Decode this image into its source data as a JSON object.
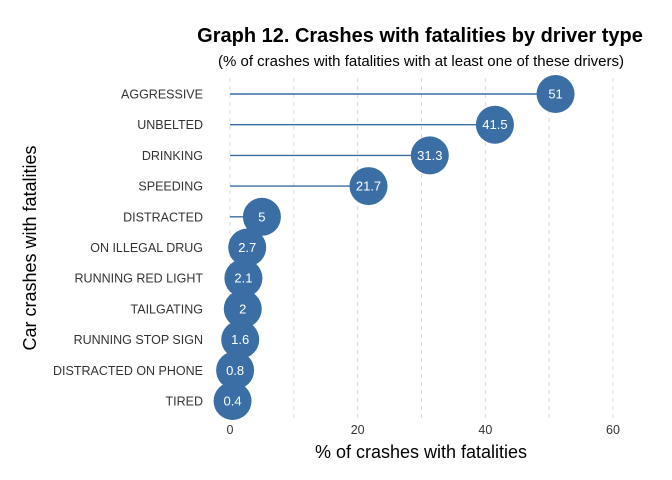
{
  "chart_data": {
    "type": "lollipop",
    "title": "Graph 12. Crashes with fatalities by driver type",
    "subtitle": "(% of crashes with fatalities with at least one of these drivers)",
    "xlabel": "% of crashes with fatalities",
    "ylabel": "Car crashes with fatalities",
    "categories": [
      "AGGRESSIVE",
      "UNBELTED",
      "DRINKING",
      "SPEEDING",
      "DISTRACTED",
      "ON ILLEGAL DRUG",
      "RUNNING RED LIGHT",
      "TAILGATING",
      "RUNNING STOP SIGN",
      "DISTRACTED ON PHONE",
      "TIRED"
    ],
    "values": [
      51,
      41.5,
      31.3,
      21.7,
      5,
      2.7,
      2.1,
      2,
      1.6,
      0.8,
      0.4
    ],
    "value_labels": [
      "51",
      "41.5",
      "31.3",
      "21.7",
      "5",
      "2.7",
      "2.1",
      "2",
      "1.6",
      "0.8",
      "0.4"
    ],
    "x_ticks": [
      0,
      20,
      40,
      60
    ],
    "x_tick_labels": [
      "0",
      "20",
      "40",
      "60"
    ],
    "xlim": [
      0,
      60
    ],
    "grid": "vertical dashed",
    "legend": "none",
    "color": "#3a6ea5",
    "grid_color": "#d9d9d9"
  }
}
